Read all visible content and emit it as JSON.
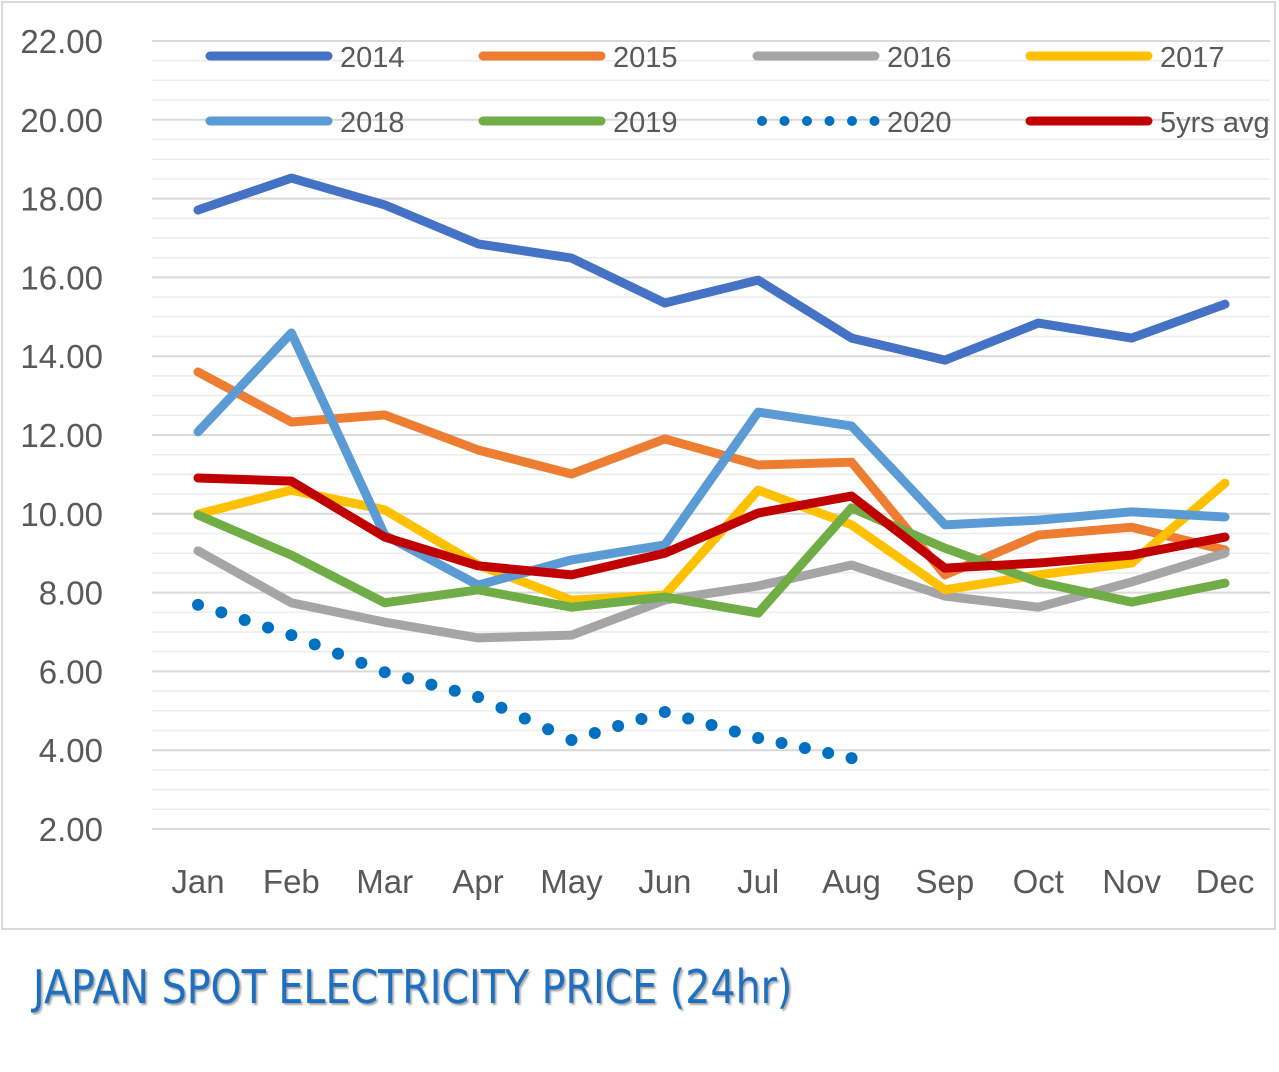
{
  "chart_data": {
    "type": "line",
    "title": "JAPAN SPOT ELECTRICITY PRICE (24hr)",
    "xlabel": "",
    "ylabel": "",
    "ylim": [
      2,
      22
    ],
    "yticks": [
      "2.00",
      "4.00",
      "6.00",
      "8.00",
      "10.00",
      "12.00",
      "14.00",
      "16.00",
      "18.00",
      "20.00",
      "22.00"
    ],
    "grid": true,
    "legend_position": "top",
    "categories": [
      "Jan",
      "Feb",
      "Mar",
      "Apr",
      "May",
      "Jun",
      "Jul",
      "Aug",
      "Sep",
      "Oct",
      "Nov",
      "Dec"
    ],
    "series": [
      {
        "name": "2014",
        "color": "#4472C4",
        "style": "solid",
        "values": [
          17.71,
          18.52,
          17.84,
          16.85,
          16.49,
          15.35,
          15.93,
          14.46,
          13.9,
          14.84,
          14.46,
          15.32
        ]
      },
      {
        "name": "2015",
        "color": "#ED7D31",
        "style": "solid",
        "values": [
          13.6,
          12.33,
          12.51,
          11.62,
          11.01,
          11.9,
          11.24,
          11.31,
          8.45,
          9.46,
          9.66,
          9.08
        ]
      },
      {
        "name": "2016",
        "color": "#A5A5A5",
        "style": "solid",
        "values": [
          9.06,
          7.74,
          7.25,
          6.85,
          6.92,
          7.81,
          8.17,
          8.7,
          7.91,
          7.63,
          8.27,
          9.0
        ]
      },
      {
        "name": "2017",
        "color": "#FFC000",
        "style": "solid",
        "values": [
          9.99,
          10.6,
          10.1,
          8.7,
          7.81,
          7.94,
          10.6,
          9.72,
          8.07,
          8.45,
          8.75,
          10.78
        ]
      },
      {
        "name": "2018",
        "color": "#5B9BD5",
        "style": "solid",
        "values": [
          12.08,
          14.59,
          9.46,
          8.19,
          8.83,
          9.21,
          12.58,
          12.23,
          9.72,
          9.84,
          10.05,
          9.92
        ]
      },
      {
        "name": "2019",
        "color": "#70AD47",
        "style": "solid",
        "values": [
          9.97,
          8.95,
          7.74,
          8.07,
          7.63,
          7.89,
          7.48,
          10.15,
          9.13,
          8.27,
          7.76,
          8.24
        ]
      },
      {
        "name": "2020",
        "color": "#0070C0",
        "style": "dotted",
        "values": [
          7.69,
          6.92,
          5.98,
          5.35,
          4.26,
          4.97,
          4.31,
          3.8,
          null,
          null,
          null,
          null
        ]
      },
      {
        "name": "5yrs avg",
        "color": "#C00000",
        "style": "solid",
        "values": [
          10.91,
          10.83,
          9.41,
          8.68,
          8.45,
          9.0,
          10.02,
          10.45,
          8.62,
          8.75,
          8.95,
          9.41
        ]
      }
    ]
  }
}
